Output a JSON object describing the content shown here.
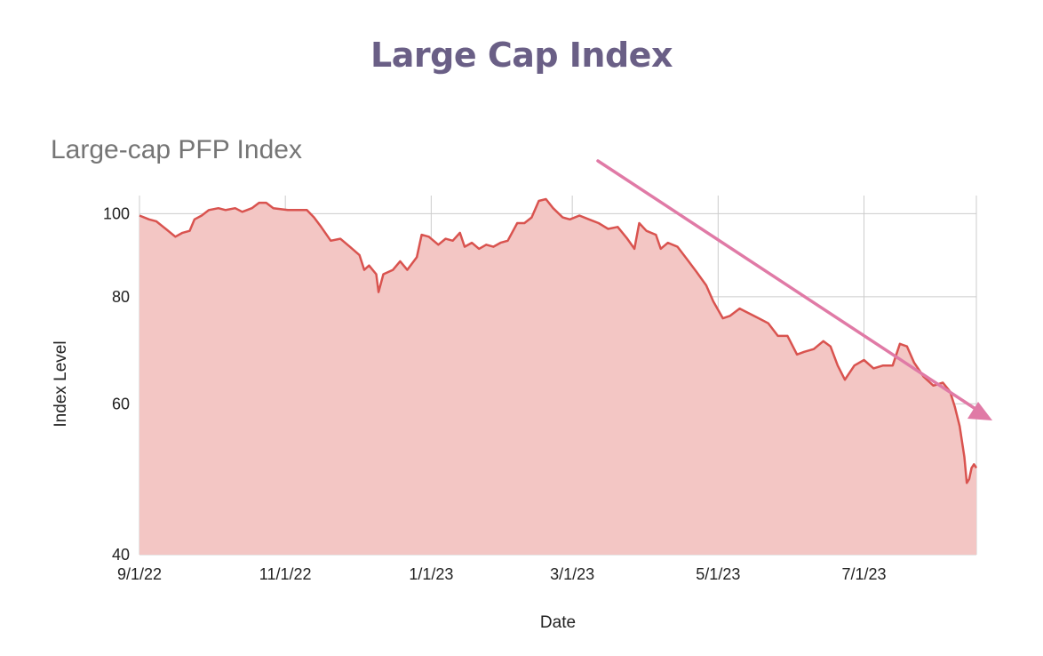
{
  "page": {
    "title": "Large Cap Index"
  },
  "colors": {
    "title": "#6a5f86",
    "line": "#d9534f",
    "area": "#f3c6c4",
    "grid": "#cccccc",
    "arrow": "#e07aa6"
  },
  "chart_data": {
    "type": "area",
    "title": "Large-cap PFP Index",
    "xlabel": "Date",
    "ylabel": "Index Level",
    "y_scale": "log",
    "ylim": [
      40,
      105
    ],
    "y_ticks": [
      100,
      80,
      60,
      40
    ],
    "y_tick_labels": [
      "100",
      "80",
      "60",
      "40"
    ],
    "x_range": [
      "2022-09-01",
      "2023-08-17"
    ],
    "x_ticks": [
      "2022-09-01",
      "2022-11-01",
      "2023-01-01",
      "2023-03-01",
      "2023-05-01",
      "2023-07-01"
    ],
    "x_tick_labels": [
      "9/1/22",
      "11/1/22",
      "1/1/23",
      "3/1/23",
      "5/1/23",
      "7/1/23"
    ],
    "grid": true,
    "annotation": "downward trend arrow",
    "series": [
      {
        "points": [
          [
            "2022-09-01",
            99.5
          ],
          [
            "2022-09-05",
            98.5
          ],
          [
            "2022-09-08",
            98.0
          ],
          [
            "2022-09-12",
            96.0
          ],
          [
            "2022-09-16",
            94.0
          ],
          [
            "2022-09-19",
            95.0
          ],
          [
            "2022-09-22",
            95.5
          ],
          [
            "2022-09-24",
            98.5
          ],
          [
            "2022-09-27",
            99.5
          ],
          [
            "2022-09-30",
            101.0
          ],
          [
            "2022-10-04",
            101.5
          ],
          [
            "2022-10-07",
            101.0
          ],
          [
            "2022-10-11",
            101.5
          ],
          [
            "2022-10-14",
            100.5
          ],
          [
            "2022-10-18",
            101.5
          ],
          [
            "2022-10-21",
            103.0
          ],
          [
            "2022-10-24",
            103.0
          ],
          [
            "2022-10-27",
            101.5
          ],
          [
            "2022-11-02",
            101.0
          ],
          [
            "2022-11-06",
            101.0
          ],
          [
            "2022-11-10",
            101.0
          ],
          [
            "2022-11-13",
            99.0
          ],
          [
            "2022-11-16",
            96.5
          ],
          [
            "2022-11-20",
            93.0
          ],
          [
            "2022-11-24",
            93.5
          ],
          [
            "2022-11-28",
            91.5
          ],
          [
            "2022-12-02",
            89.5
          ],
          [
            "2022-12-04",
            86.0
          ],
          [
            "2022-12-06",
            87.0
          ],
          [
            "2022-12-09",
            85.0
          ],
          [
            "2022-12-10",
            81.0
          ],
          [
            "2022-12-12",
            85.0
          ],
          [
            "2022-12-16",
            86.0
          ],
          [
            "2022-12-19",
            88.0
          ],
          [
            "2022-12-22",
            86.0
          ],
          [
            "2022-12-26",
            89.0
          ],
          [
            "2022-12-28",
            94.5
          ],
          [
            "2022-12-31",
            94.0
          ],
          [
            "2023-01-04",
            92.0
          ],
          [
            "2023-01-07",
            93.5
          ],
          [
            "2023-01-10",
            93.0
          ],
          [
            "2023-01-13",
            95.0
          ],
          [
            "2023-01-15",
            91.5
          ],
          [
            "2023-01-18",
            92.5
          ],
          [
            "2023-01-21",
            91.0
          ],
          [
            "2023-01-24",
            92.0
          ],
          [
            "2023-01-27",
            91.5
          ],
          [
            "2023-01-30",
            92.5
          ],
          [
            "2023-02-02",
            93.0
          ],
          [
            "2023-02-06",
            97.5
          ],
          [
            "2023-02-09",
            97.5
          ],
          [
            "2023-02-12",
            99.0
          ],
          [
            "2023-02-15",
            103.5
          ],
          [
            "2023-02-18",
            104.0
          ],
          [
            "2023-02-21",
            101.5
          ],
          [
            "2023-02-25",
            99.0
          ],
          [
            "2023-02-28",
            98.5
          ],
          [
            "2023-03-04",
            99.5
          ],
          [
            "2023-03-08",
            98.5
          ],
          [
            "2023-03-12",
            97.5
          ],
          [
            "2023-03-16",
            96.0
          ],
          [
            "2023-03-20",
            96.5
          ],
          [
            "2023-03-24",
            93.5
          ],
          [
            "2023-03-27",
            91.0
          ],
          [
            "2023-03-29",
            97.5
          ],
          [
            "2023-04-01",
            95.5
          ],
          [
            "2023-04-05",
            94.5
          ],
          [
            "2023-04-07",
            91.0
          ],
          [
            "2023-04-10",
            92.5
          ],
          [
            "2023-04-14",
            91.5
          ],
          [
            "2023-04-18",
            88.5
          ],
          [
            "2023-04-22",
            85.5
          ],
          [
            "2023-04-26",
            82.5
          ],
          [
            "2023-04-29",
            79.0
          ],
          [
            "2023-05-03",
            75.5
          ],
          [
            "2023-05-06",
            76.0
          ],
          [
            "2023-05-10",
            77.5
          ],
          [
            "2023-05-14",
            76.5
          ],
          [
            "2023-05-18",
            75.5
          ],
          [
            "2023-05-22",
            74.5
          ],
          [
            "2023-05-26",
            72.0
          ],
          [
            "2023-05-30",
            72.0
          ],
          [
            "2023-06-03",
            68.5
          ],
          [
            "2023-06-06",
            69.0
          ],
          [
            "2023-06-10",
            69.5
          ],
          [
            "2023-06-14",
            71.0
          ],
          [
            "2023-06-17",
            70.0
          ],
          [
            "2023-06-20",
            66.5
          ],
          [
            "2023-06-23",
            64.0
          ],
          [
            "2023-06-27",
            66.5
          ],
          [
            "2023-07-01",
            67.5
          ],
          [
            "2023-07-05",
            66.0
          ],
          [
            "2023-07-09",
            66.5
          ],
          [
            "2023-07-13",
            66.5
          ],
          [
            "2023-07-16",
            70.5
          ],
          [
            "2023-07-19",
            70.0
          ],
          [
            "2023-07-22",
            67.0
          ],
          [
            "2023-07-26",
            64.5
          ],
          [
            "2023-07-30",
            63.0
          ],
          [
            "2023-08-03",
            63.5
          ],
          [
            "2023-08-06",
            62.0
          ],
          [
            "2023-08-08",
            59.5
          ],
          [
            "2023-08-10",
            56.5
          ],
          [
            "2023-08-12",
            52.0
          ],
          [
            "2023-08-13",
            48.5
          ],
          [
            "2023-08-14",
            49.0
          ],
          [
            "2023-08-15",
            50.5
          ],
          [
            "2023-08-16",
            51.0
          ],
          [
            "2023-08-17",
            50.5
          ]
        ]
      }
    ]
  }
}
